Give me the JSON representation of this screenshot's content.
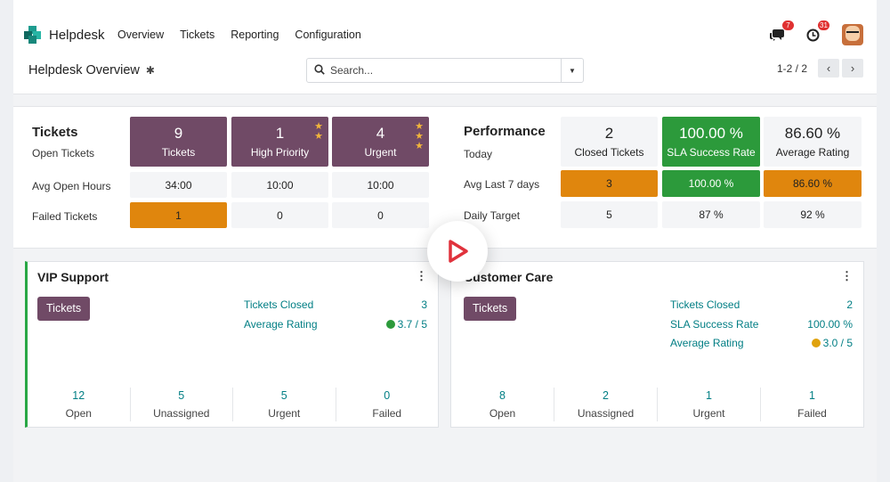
{
  "app": {
    "name": "Helpdesk",
    "nav": [
      "Overview",
      "Tickets",
      "Reporting",
      "Configuration"
    ],
    "messages_badge": "7",
    "activities_badge": "31"
  },
  "control": {
    "title": "Helpdesk Overview",
    "search_placeholder": "Search...",
    "pager": "1-2 / 2"
  },
  "tickets": {
    "header": "Tickets",
    "row_labels": [
      "Open Tickets",
      "Avg Open Hours",
      "Failed Tickets"
    ],
    "tiles": [
      {
        "num": "9",
        "cap": "Tickets"
      },
      {
        "num": "1",
        "cap": "High Priority"
      },
      {
        "num": "4",
        "cap": "Urgent"
      }
    ],
    "avg_open_hours": [
      "34:00",
      "10:00",
      "10:00"
    ],
    "failed": [
      "1",
      "0",
      "0"
    ]
  },
  "performance": {
    "header": "Performance",
    "row_labels": [
      "Today",
      "Avg Last 7 days",
      "Daily Target"
    ],
    "tiles": [
      {
        "num": "2",
        "cap": "Closed Tickets"
      },
      {
        "num": "100.00 %",
        "cap": "SLA Success Rate"
      },
      {
        "num": "86.60 %",
        "cap": "Average Rating"
      }
    ],
    "avg_last_7": [
      "3",
      "100.00 %",
      "86.60 %"
    ],
    "daily_target": [
      "5",
      "87 %",
      "92 %"
    ]
  },
  "teams": [
    {
      "name": "VIP Support",
      "button": "Tickets",
      "stats": [
        {
          "label": "Tickets Closed",
          "value": "3"
        },
        {
          "label": "Average Rating",
          "value": "3.7 / 5"
        }
      ],
      "footer": [
        {
          "count": "12",
          "label": "Open"
        },
        {
          "count": "5",
          "label": "Unassigned"
        },
        {
          "count": "5",
          "label": "Urgent"
        },
        {
          "count": "0",
          "label": "Failed"
        }
      ]
    },
    {
      "name": "Customer Care",
      "button": "Tickets",
      "stats": [
        {
          "label": "Tickets Closed",
          "value": "2"
        },
        {
          "label": "SLA Success Rate",
          "value": "100.00 %"
        },
        {
          "label": "Average Rating",
          "value": "3.0 / 5"
        }
      ],
      "footer": [
        {
          "count": "8",
          "label": "Open"
        },
        {
          "count": "2",
          "label": "Unassigned"
        },
        {
          "count": "1",
          "label": "Urgent"
        },
        {
          "count": "1",
          "label": "Failed"
        }
      ]
    }
  ],
  "colors": {
    "brand": "#704a66",
    "accent": "#017e84",
    "warning": "#e0860d",
    "success": "#2c9a3b"
  }
}
